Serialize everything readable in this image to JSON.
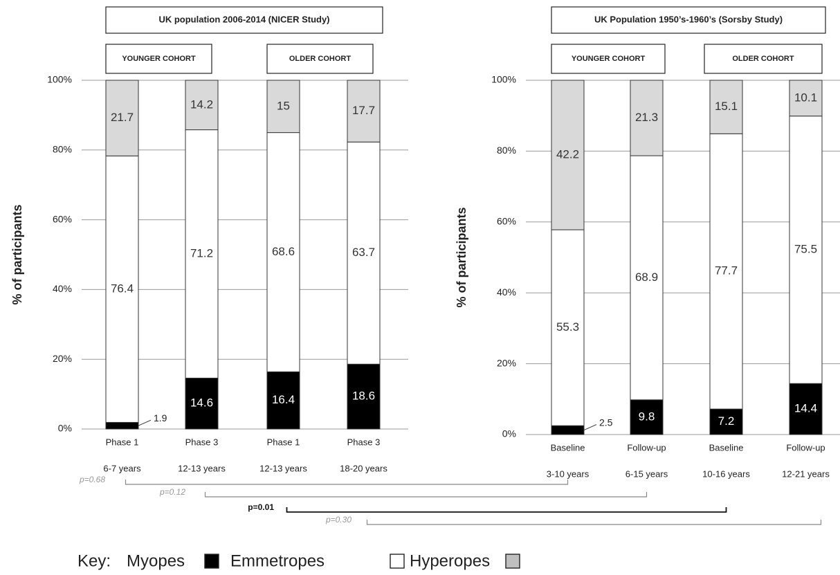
{
  "chart_data": [
    {
      "type": "bar",
      "stacked": true,
      "title": "UK population 2006-2014 (NICER Study)",
      "ylabel": "% of participants",
      "ylim": [
        0,
        100
      ],
      "yticks": [
        "0%",
        "20%",
        "40%",
        "60%",
        "80%",
        "100%"
      ],
      "grid": true,
      "groups": [
        {
          "label": "YOUNGER COHORT",
          "categories": [
            0,
            1
          ]
        },
        {
          "label": "OLDER COHORT",
          "categories": [
            2,
            3
          ]
        }
      ],
      "categories": [
        "Phase 1",
        "Phase 3",
        "Phase 1",
        "Phase 3"
      ],
      "category_ages": [
        "6-7 years",
        "12-13 years",
        "12-13 years",
        "18-20 years"
      ],
      "series": [
        {
          "name": "Myopes",
          "color": "#000000",
          "values": [
            1.9,
            14.6,
            16.4,
            18.6
          ],
          "labels": [
            "1.9",
            "14.6",
            "16.4",
            "18.6"
          ]
        },
        {
          "name": "Emmetropes",
          "color": "#ffffff",
          "values": [
            76.4,
            71.2,
            68.6,
            63.7
          ],
          "labels": [
            "76.4",
            "71.2",
            "68.6",
            "63.7"
          ]
        },
        {
          "name": "Hyperopes",
          "color": "#d9d9d9",
          "values": [
            21.7,
            14.2,
            15,
            17.7
          ],
          "labels": [
            "21.7",
            "14.2",
            "15",
            "17.7"
          ]
        }
      ]
    },
    {
      "type": "bar",
      "stacked": true,
      "title": "UK Population 1950’s-1960’s (Sorsby Study)",
      "ylabel": "% of participants",
      "ylim": [
        0,
        100
      ],
      "yticks": [
        "0%",
        "20%",
        "40%",
        "60%",
        "80%",
        "100%"
      ],
      "grid": true,
      "groups": [
        {
          "label": "YOUNGER COHORT",
          "categories": [
            0,
            1
          ]
        },
        {
          "label": "OLDER COHORT",
          "categories": [
            2,
            3
          ]
        }
      ],
      "categories": [
        "Baseline",
        "Follow-up",
        "Baseline",
        "Follow-up"
      ],
      "category_ages": [
        "3-10 years",
        "6-15 years",
        "10-16 years",
        "12-21 years"
      ],
      "series": [
        {
          "name": "Myopes",
          "color": "#000000",
          "values": [
            2.5,
            9.8,
            7.2,
            14.4
          ],
          "labels": [
            "2.5",
            "9.8",
            "7.2",
            "14.4"
          ]
        },
        {
          "name": "Emmetropes",
          "color": "#ffffff",
          "values": [
            55.3,
            68.9,
            77.7,
            75.5
          ],
          "labels": [
            "55.3",
            "68.9",
            "77.7",
            "75.5"
          ]
        },
        {
          "name": "Hyperopes",
          "color": "#d9d9d9",
          "values": [
            42.2,
            21.3,
            15.1,
            10.1
          ],
          "labels": [
            "42.2",
            "21.3",
            "15.1",
            "10.1"
          ]
        }
      ]
    }
  ],
  "comparisons": [
    {
      "label": "p=0.68",
      "bold": false,
      "from": [
        0,
        0
      ],
      "to": [
        1,
        0
      ]
    },
    {
      "label": "p=0.12",
      "bold": false,
      "from": [
        0,
        1
      ],
      "to": [
        1,
        1
      ]
    },
    {
      "label": "p=0.01",
      "bold": true,
      "from": [
        0,
        2
      ],
      "to": [
        1,
        2
      ]
    },
    {
      "label": "p=0.30",
      "bold": false,
      "from": [
        0,
        3
      ],
      "to": [
        1,
        3
      ]
    }
  ],
  "key": {
    "prefix": "Key:",
    "items": [
      {
        "label": "Myopes",
        "color": "#000000"
      },
      {
        "label": "Emmetropes",
        "color": "#ffffff"
      },
      {
        "label": "Hyperopes",
        "color": "#bfbfbf"
      }
    ]
  }
}
